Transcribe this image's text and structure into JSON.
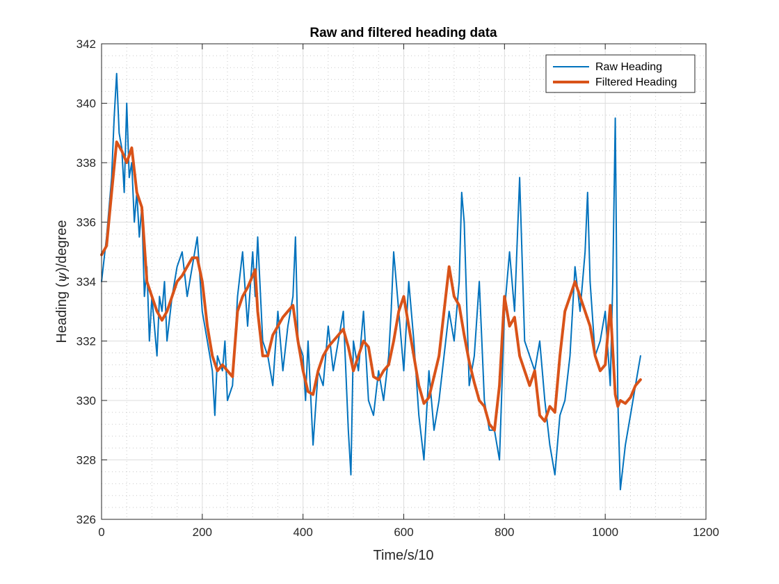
{
  "chart_data": {
    "type": "line",
    "title": "Raw and filtered heading data",
    "xlabel": "Time/s/10",
    "ylabel_prefix": "Heading (",
    "ylabel_symbol": "ψ",
    "ylabel_suffix": ")/degree",
    "xlim": [
      0,
      1200
    ],
    "ylim": [
      326,
      342
    ],
    "xticks": [
      0,
      200,
      400,
      600,
      800,
      1000,
      1200
    ],
    "yticks": [
      326,
      328,
      330,
      332,
      334,
      336,
      338,
      340,
      342
    ],
    "xtick_labels": [
      "0",
      "200",
      "400",
      "600",
      "800",
      "1000",
      "1200"
    ],
    "ytick_labels": [
      "326",
      "328",
      "330",
      "332",
      "334",
      "336",
      "338",
      "340",
      "342"
    ],
    "grid": true,
    "minor_grid": true,
    "legend_position": "top-right",
    "series": [
      {
        "name": "Raw Heading",
        "color": "#0072BD",
        "line_width": 2,
        "x": [
          0,
          10,
          20,
          25,
          30,
          35,
          40,
          45,
          50,
          55,
          60,
          65,
          70,
          75,
          80,
          85,
          90,
          95,
          100,
          105,
          110,
          115,
          120,
          125,
          130,
          140,
          150,
          160,
          170,
          180,
          185,
          190,
          200,
          210,
          220,
          225,
          230,
          240,
          245,
          250,
          260,
          270,
          280,
          290,
          300,
          305,
          310,
          320,
          330,
          340,
          350,
          360,
          370,
          380,
          385,
          390,
          400,
          405,
          410,
          420,
          430,
          440,
          450,
          460,
          470,
          480,
          490,
          495,
          500,
          510,
          520,
          530,
          540,
          550,
          560,
          570,
          575,
          580,
          590,
          600,
          610,
          620,
          630,
          640,
          650,
          660,
          670,
          680,
          690,
          700,
          710,
          715,
          720,
          730,
          740,
          750,
          760,
          770,
          780,
          790,
          800,
          810,
          820,
          830,
          840,
          850,
          860,
          870,
          880,
          890,
          900,
          910,
          920,
          930,
          940,
          950,
          960,
          965,
          970,
          980,
          990,
          1000,
          1010,
          1015,
          1020,
          1025,
          1030,
          1040,
          1050,
          1060,
          1070
        ],
        "y": [
          334.0,
          335.5,
          337.5,
          339.5,
          341.0,
          339.0,
          338.5,
          337.0,
          340.0,
          337.5,
          338.0,
          336.0,
          337.0,
          335.5,
          336.5,
          333.5,
          334.5,
          332.0,
          333.5,
          332.5,
          331.5,
          333.5,
          333.0,
          334.0,
          332.0,
          333.5,
          334.5,
          335.0,
          333.5,
          334.5,
          335.0,
          335.5,
          333.0,
          332.0,
          331.0,
          329.5,
          331.5,
          331.0,
          332.0,
          330.0,
          330.5,
          333.5,
          335.0,
          332.5,
          335.0,
          333.5,
          335.5,
          332.0,
          331.5,
          330.5,
          333.0,
          331.0,
          332.5,
          333.5,
          335.5,
          332.0,
          331.5,
          330.0,
          332.0,
          328.5,
          331.0,
          330.5,
          332.5,
          331.0,
          332.0,
          333.0,
          329.0,
          327.5,
          332.0,
          331.0,
          333.0,
          330.0,
          329.5,
          331.0,
          330.0,
          331.5,
          333.0,
          335.0,
          333.0,
          331.0,
          334.0,
          332.0,
          329.5,
          328.0,
          331.0,
          329.0,
          330.0,
          331.5,
          333.0,
          332.0,
          334.0,
          337.0,
          336.0,
          330.5,
          331.5,
          334.0,
          330.0,
          329.0,
          329.0,
          328.0,
          333.0,
          335.0,
          333.0,
          337.5,
          332.0,
          331.5,
          331.0,
          332.0,
          330.0,
          328.5,
          327.5,
          329.5,
          330.0,
          331.5,
          334.5,
          333.0,
          335.0,
          337.0,
          334.0,
          331.5,
          332.0,
          333.0,
          330.5,
          334.0,
          339.5,
          330.0,
          327.0,
          328.5,
          329.5,
          330.5,
          331.5
        ]
      },
      {
        "name": "Filtered Heading",
        "color": "#D95319",
        "line_width": 4,
        "x": [
          0,
          10,
          20,
          30,
          40,
          50,
          60,
          70,
          80,
          90,
          100,
          110,
          120,
          130,
          140,
          150,
          160,
          170,
          180,
          190,
          200,
          210,
          220,
          230,
          240,
          250,
          260,
          270,
          280,
          290,
          300,
          305,
          310,
          320,
          330,
          340,
          350,
          360,
          370,
          380,
          390,
          400,
          410,
          420,
          430,
          440,
          450,
          460,
          470,
          480,
          490,
          500,
          510,
          520,
          530,
          540,
          550,
          560,
          570,
          580,
          590,
          600,
          610,
          620,
          630,
          640,
          650,
          660,
          670,
          680,
          690,
          700,
          710,
          720,
          730,
          740,
          750,
          760,
          770,
          780,
          790,
          800,
          810,
          820,
          830,
          840,
          850,
          860,
          870,
          880,
          890,
          900,
          910,
          920,
          930,
          940,
          950,
          960,
          970,
          980,
          990,
          1000,
          1010,
          1020,
          1025,
          1030,
          1040,
          1050,
          1060,
          1070
        ],
        "y": [
          334.9,
          335.2,
          337.0,
          338.7,
          338.4,
          338.0,
          338.5,
          337.0,
          336.5,
          334.0,
          333.5,
          333.0,
          332.7,
          333.0,
          333.5,
          334.0,
          334.2,
          334.5,
          334.8,
          334.8,
          334.0,
          332.5,
          331.5,
          331.0,
          331.2,
          331.0,
          330.8,
          333.0,
          333.5,
          333.8,
          334.2,
          334.4,
          333.0,
          331.5,
          331.5,
          332.2,
          332.5,
          332.8,
          333.0,
          333.2,
          332.0,
          331.0,
          330.3,
          330.2,
          331.0,
          331.5,
          331.8,
          332.0,
          332.2,
          332.4,
          331.8,
          331.0,
          331.5,
          332.0,
          331.8,
          330.8,
          330.7,
          331.0,
          331.2,
          332.0,
          333.0,
          333.5,
          332.5,
          331.5,
          330.5,
          329.9,
          330.1,
          330.8,
          331.5,
          333.0,
          334.5,
          333.5,
          333.2,
          332.2,
          331.3,
          330.6,
          330.0,
          329.8,
          329.2,
          329.0,
          330.5,
          333.5,
          332.5,
          332.8,
          331.5,
          331.0,
          330.5,
          331.0,
          329.5,
          329.3,
          329.8,
          329.6,
          331.5,
          333.0,
          333.5,
          334.0,
          333.5,
          333.0,
          332.5,
          331.5,
          331.0,
          331.2,
          333.2,
          330.2,
          329.8,
          330.0,
          329.9,
          330.1,
          330.5,
          330.7
        ]
      }
    ]
  }
}
